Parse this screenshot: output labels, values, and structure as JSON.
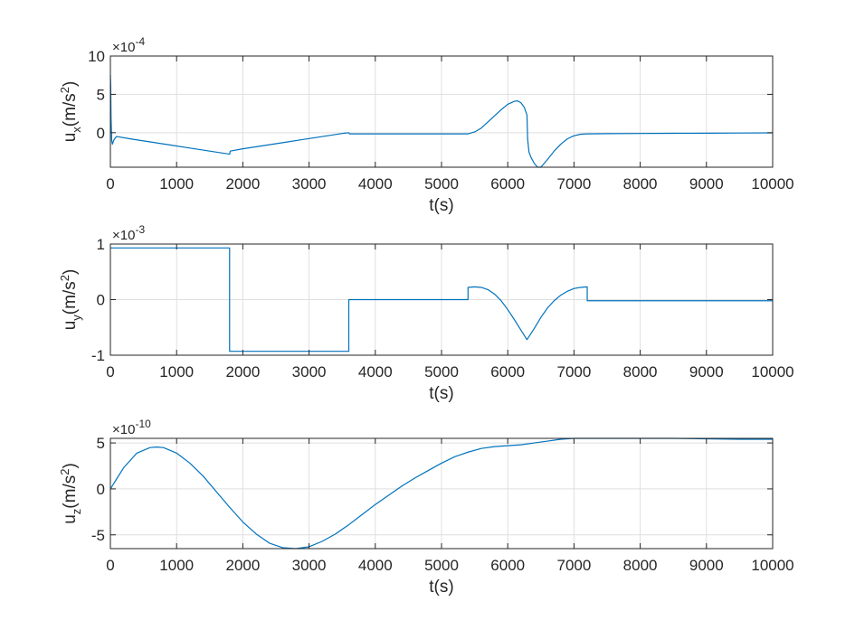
{
  "chart_data": [
    {
      "type": "line",
      "ylabel": "u_x(m/s^2)",
      "ylabel_main": "u",
      "ylabel_sub": "x",
      "ylabel_rest": "(m/s",
      "ylabel_sup": "2",
      "ylabel_end": ")",
      "xlabel": "t(s)",
      "xlim": [
        0,
        10000
      ],
      "ylim": [
        -4.5,
        10
      ],
      "exponent_label": "×10",
      "exponent_power": "-4",
      "xticks": [
        "0",
        "1000",
        "2000",
        "3000",
        "4000",
        "5000",
        "6000",
        "7000",
        "8000",
        "9000",
        "10000"
      ],
      "yticks": [
        {
          "value": 0,
          "label": "0"
        },
        {
          "value": 5,
          "label": "5"
        },
        {
          "value": 10,
          "label": "10"
        }
      ],
      "grid": true,
      "color": "#0072BD",
      "series": [
        {
          "x": [
            0,
            5,
            10,
            20,
            30,
            50,
            80,
            100,
            300,
            600,
            900,
            1200,
            1500,
            1800,
            1800,
            1810,
            2000,
            2300,
            2600,
            2900,
            3200,
            3500,
            3600,
            3610,
            4000,
            4500,
            5000,
            5400,
            5500,
            5600,
            5700,
            5800,
            5900,
            6000,
            6100,
            6150,
            6200,
            6250,
            6290,
            6300,
            6320,
            6350,
            6400,
            6450,
            6500,
            6550,
            6600,
            6700,
            6800,
            6900,
            7000,
            7100,
            7200,
            7500,
            8000,
            8500,
            9000,
            9500,
            10000
          ],
          "y": [
            7.5,
            6.0,
            2.0,
            -1.0,
            -1.5,
            -1.0,
            -0.6,
            -0.5,
            -0.8,
            -1.2,
            -1.6,
            -2.0,
            -2.4,
            -2.8,
            -2.8,
            -2.4,
            -2.1,
            -1.7,
            -1.3,
            -0.9,
            -0.5,
            -0.1,
            0.0,
            -0.15,
            -0.15,
            -0.15,
            -0.15,
            -0.15,
            0.1,
            0.6,
            1.4,
            2.2,
            3.0,
            3.7,
            4.1,
            4.15,
            3.9,
            3.3,
            2.3,
            -0.8,
            -2.5,
            -3.2,
            -4.0,
            -4.5,
            -4.5,
            -4.0,
            -3.5,
            -2.4,
            -1.5,
            -0.8,
            -0.4,
            -0.2,
            -0.15,
            -0.12,
            -0.1,
            -0.08,
            -0.06,
            -0.04,
            -0.02
          ]
        }
      ]
    },
    {
      "type": "line",
      "ylabel": "u_y(m/s^2)",
      "ylabel_main": "u",
      "ylabel_sub": "y",
      "ylabel_rest": "(m/s",
      "ylabel_sup": "2",
      "ylabel_end": ")",
      "xlabel": "t(s)",
      "xlim": [
        0,
        10000
      ],
      "ylim": [
        -1,
        1
      ],
      "exponent_label": "×10",
      "exponent_power": "-3",
      "xticks": [
        "0",
        "1000",
        "2000",
        "3000",
        "4000",
        "5000",
        "6000",
        "7000",
        "8000",
        "9000",
        "10000"
      ],
      "yticks": [
        {
          "value": -1,
          "label": "-1"
        },
        {
          "value": 0,
          "label": "0"
        },
        {
          "value": 1,
          "label": "1"
        }
      ],
      "grid": true,
      "color": "#0072BD",
      "series": [
        {
          "x": [
            0,
            1800,
            1800,
            3600,
            3600,
            5400,
            5400,
            5500,
            5600,
            5700,
            5800,
            5900,
            6000,
            6100,
            6200,
            6290,
            6400,
            6500,
            6600,
            6700,
            6800,
            6900,
            7000,
            7100,
            7200,
            7200,
            8000,
            9000,
            10000
          ],
          "y": [
            0.93,
            0.93,
            -0.93,
            -0.93,
            0.0,
            0.0,
            0.22,
            0.23,
            0.22,
            0.18,
            0.1,
            -0.02,
            -0.18,
            -0.36,
            -0.55,
            -0.72,
            -0.52,
            -0.32,
            -0.15,
            -0.02,
            0.08,
            0.15,
            0.2,
            0.22,
            0.23,
            -0.02,
            -0.02,
            -0.02,
            -0.02
          ]
        }
      ]
    },
    {
      "type": "line",
      "ylabel": "u_z(m/s^2)",
      "ylabel_main": "u",
      "ylabel_sub": "z",
      "ylabel_rest": "(m/s",
      "ylabel_sup": "2",
      "ylabel_end": ")",
      "xlabel": "t(s)",
      "xlim": [
        0,
        10000
      ],
      "ylim": [
        -6.5,
        5.5
      ],
      "exponent_label": "×10",
      "exponent_power": "-10",
      "xticks": [
        "0",
        "1000",
        "2000",
        "3000",
        "4000",
        "5000",
        "6000",
        "7000",
        "8000",
        "9000",
        "10000"
      ],
      "yticks": [
        {
          "value": -5,
          "label": "-5"
        },
        {
          "value": 0,
          "label": "0"
        },
        {
          "value": 5,
          "label": "5"
        }
      ],
      "grid": true,
      "color": "#0072BD",
      "series": [
        {
          "x": [
            0,
            200,
            400,
            600,
            700,
            800,
            1000,
            1200,
            1400,
            1600,
            1800,
            2000,
            2200,
            2400,
            2600,
            2800,
            3000,
            3200,
            3400,
            3600,
            3800,
            4000,
            4200,
            4400,
            4600,
            4800,
            5000,
            5200,
            5400,
            5600,
            5800,
            6000,
            6200,
            6400,
            6600,
            6800,
            7000,
            7500,
            8000,
            8500,
            9000,
            9500,
            10000
          ],
          "y": [
            0.0,
            2.3,
            3.9,
            4.5,
            4.55,
            4.5,
            3.9,
            2.8,
            1.4,
            -0.3,
            -2.0,
            -3.6,
            -4.9,
            -5.9,
            -6.4,
            -6.5,
            -6.3,
            -5.7,
            -4.9,
            -3.9,
            -2.8,
            -1.7,
            -0.7,
            0.3,
            1.2,
            2.0,
            2.8,
            3.5,
            4.0,
            4.4,
            4.6,
            4.7,
            4.8,
            5.0,
            5.2,
            5.4,
            5.5,
            5.55,
            5.55,
            5.5,
            5.45,
            5.4,
            5.4
          ]
        }
      ]
    }
  ]
}
